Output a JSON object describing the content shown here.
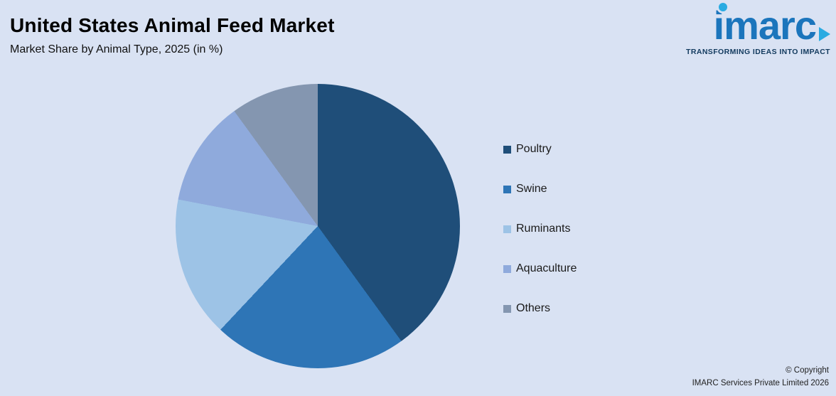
{
  "header": {
    "title": "United States Animal Feed Market",
    "subtitle": "Market Share by Animal Type, 2025 (in %)"
  },
  "logo": {
    "brand": "imarc",
    "tagline": "TRANSFORMING IDEAS INTO IMPACT",
    "brand_color": "#1b75bc",
    "accent_color": "#29abe2"
  },
  "footer": {
    "copyright_line1": "© Copyright",
    "copyright_line2": "IMARC Services Private Limited 2026"
  },
  "colors": {
    "background": "#d9e2f3"
  },
  "chart_data": {
    "type": "pie",
    "title": "United States Animal Feed Market",
    "subtitle": "Market Share by Animal Type, 2025 (in %)",
    "categories": [
      "Poultry",
      "Swine",
      "Ruminants",
      "Aquaculture",
      "Others"
    ],
    "values": [
      40,
      22,
      16,
      12,
      10
    ],
    "colors": [
      "#1f4e79",
      "#2e75b6",
      "#9dc3e6",
      "#8faadc",
      "#8496b0"
    ],
    "unit": "%",
    "start_angle_deg": 0,
    "direction": "clockwise",
    "legend_position": "right",
    "data_labels": false
  }
}
